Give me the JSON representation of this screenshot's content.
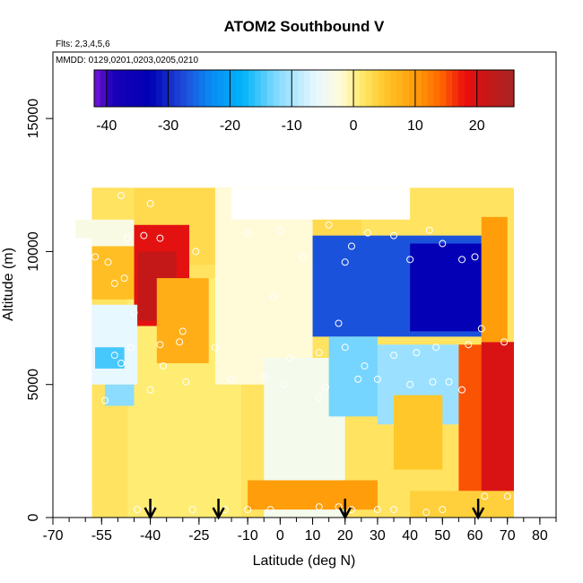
{
  "chart_data": {
    "type": "heatmap",
    "title": "ATOM2 Southbound V",
    "notes": [
      "Flts: 2,3,4,5,6",
      "MMDD: 0129,0201,0203,0205,0210"
    ],
    "xlabel": "Latitude (deg N)",
    "ylabel": "Altitude (m)",
    "xlim": [
      -70,
      85
    ],
    "ylim": [
      0,
      17500
    ],
    "x_ticks": [
      -70,
      -55,
      -40,
      -25,
      -10,
      0,
      10,
      20,
      30,
      40,
      50,
      60,
      70,
      80
    ],
    "x_tick_labels": [
      "-70",
      "-55",
      "-40",
      "-25",
      "-10",
      "0",
      "10",
      "20",
      "30",
      "40",
      "50",
      "60",
      "70",
      "80"
    ],
    "y_ticks": [
      0,
      5000,
      10000,
      15000
    ],
    "y_tick_labels": [
      "0",
      "5000",
      "10000",
      "15000"
    ],
    "colorbar": {
      "range": [
        -42,
        26
      ],
      "ticks": [
        -40,
        -30,
        -20,
        -10,
        0,
        10,
        20
      ],
      "tick_labels": [
        "-40",
        "-30",
        "-20",
        "-10",
        "0",
        "10",
        "20"
      ]
    },
    "colorscale": [
      [
        -42,
        "#7a16d6"
      ],
      [
        -39,
        "#1a00b8"
      ],
      [
        -33,
        "#0000b4"
      ],
      [
        -28,
        "#1f44d6"
      ],
      [
        -23,
        "#0a8cf5"
      ],
      [
        -18,
        "#00b4f8"
      ],
      [
        -12,
        "#8cdcff"
      ],
      [
        -6,
        "#e8f8ff"
      ],
      [
        -2,
        "#fffbd9"
      ],
      [
        1,
        "#ffec73"
      ],
      [
        5,
        "#ffc72a"
      ],
      [
        10,
        "#ff9d0a"
      ],
      [
        14,
        "#ff6a00"
      ],
      [
        18,
        "#ee0e0e"
      ],
      [
        22,
        "#c41818"
      ],
      [
        26,
        "#a82424"
      ]
    ],
    "regions": [
      {
        "lat": [
          -58,
          72
        ],
        "alt": [
          0,
          12400
        ],
        "v": 2
      },
      {
        "lat": [
          -47,
          -12
        ],
        "alt": [
          0,
          9000
        ],
        "v": 1
      },
      {
        "lat": [
          -63,
          -44
        ],
        "alt": [
          9000,
          11200
        ],
        "v": -3
      },
      {
        "lat": [
          -45,
          25
        ],
        "alt": [
          9500,
          12400
        ],
        "v": 3
      },
      {
        "lat": [
          -45,
          -28
        ],
        "alt": [
          7200,
          11000
        ],
        "v": 19
      },
      {
        "lat": [
          -44,
          -32
        ],
        "alt": [
          7400,
          10000
        ],
        "v": 22
      },
      {
        "lat": [
          -38,
          -22
        ],
        "alt": [
          5800,
          9000
        ],
        "v": 8
      },
      {
        "lat": [
          -58,
          -45
        ],
        "alt": [
          8200,
          10200
        ],
        "v": 6
      },
      {
        "lat": [
          -59,
          -44
        ],
        "alt": [
          5000,
          8000
        ],
        "v": -6
      },
      {
        "lat": [
          -57,
          -48
        ],
        "alt": [
          5600,
          6400
        ],
        "v": -15
      },
      {
        "lat": [
          -54,
          -45
        ],
        "alt": [
          4200,
          5000
        ],
        "v": -12
      },
      {
        "lat": [
          -20,
          10
        ],
        "alt": [
          5000,
          12400
        ],
        "v": -2
      },
      {
        "lat": [
          -5,
          20
        ],
        "alt": [
          0,
          6000
        ],
        "v": -4
      },
      {
        "lat": [
          10,
          62
        ],
        "alt": [
          6800,
          10600
        ],
        "v": -27
      },
      {
        "lat": [
          40,
          62
        ],
        "alt": [
          7000,
          10300
        ],
        "v": -34
      },
      {
        "lat": [
          15,
          30
        ],
        "alt": [
          3800,
          6800
        ],
        "v": -13
      },
      {
        "lat": [
          30,
          55
        ],
        "alt": [
          3500,
          6500
        ],
        "v": -11
      },
      {
        "lat": [
          35,
          50
        ],
        "alt": [
          1800,
          4600
        ],
        "v": 5
      },
      {
        "lat": [
          55,
          72
        ],
        "alt": [
          1000,
          6500
        ],
        "v": 15
      },
      {
        "lat": [
          62,
          72
        ],
        "alt": [
          1000,
          6600
        ],
        "v": 20
      },
      {
        "lat": [
          62,
          70
        ],
        "alt": [
          6600,
          11300
        ],
        "v": 10
      },
      {
        "lat": [
          40,
          72
        ],
        "alt": [
          0,
          1000
        ],
        "v": 4
      },
      {
        "lat": [
          -10,
          30
        ],
        "alt": [
          300,
          1400
        ],
        "v": 10
      }
    ],
    "coverage": [
      {
        "lat": [
          -70,
          -58
        ],
        "alt": [
          0,
          10500
        ],
        "v": null
      },
      {
        "lat": [
          -46,
          72
        ],
        "alt": [
          12400,
          13000
        ],
        "v": null
      },
      {
        "lat": [
          -15,
          40
        ],
        "alt": [
          11200,
          12400
        ],
        "v": null
      }
    ],
    "sample_points": [
      [
        -62,
        10200
      ],
      [
        -57,
        9800
      ],
      [
        -53,
        9600
      ],
      [
        -51,
        8800
      ],
      [
        -48,
        9000
      ],
      [
        -45,
        7700
      ],
      [
        -47,
        10500
      ],
      [
        -42,
        10600
      ],
      [
        -40,
        11800
      ],
      [
        -49,
        12100
      ],
      [
        -37,
        10500
      ],
      [
        -26,
        10000
      ],
      [
        -30,
        7000
      ],
      [
        -46,
        6400
      ],
      [
        -51,
        6100
      ],
      [
        -54,
        4400
      ],
      [
        -49,
        5800
      ],
      [
        -37,
        6500
      ],
      [
        -20,
        6400
      ],
      [
        -14,
        11900
      ],
      [
        -13,
        12000
      ],
      [
        -10,
        10700
      ],
      [
        0,
        10800
      ],
      [
        -2,
        8300
      ],
      [
        7,
        9800
      ],
      [
        15,
        11000
      ],
      [
        20,
        9600
      ],
      [
        22,
        10200
      ],
      [
        27,
        10700
      ],
      [
        35,
        10600
      ],
      [
        46,
        10800
      ],
      [
        50,
        10300
      ],
      [
        40,
        9700
      ],
      [
        56,
        9700
      ],
      [
        60,
        9800
      ],
      [
        62,
        7100
      ],
      [
        18,
        7300
      ],
      [
        3,
        6000
      ],
      [
        12,
        6200
      ],
      [
        20,
        6400
      ],
      [
        26,
        5700
      ],
      [
        35,
        6100
      ],
      [
        42,
        6200
      ],
      [
        48,
        6400
      ],
      [
        58,
        6500
      ],
      [
        69,
        6600
      ],
      [
        24,
        5200
      ],
      [
        14,
        4900
      ],
      [
        30,
        5200
      ],
      [
        40,
        5000
      ],
      [
        47,
        5100
      ],
      [
        52,
        5100
      ],
      [
        56,
        4800
      ],
      [
        12,
        4500
      ],
      [
        1,
        5000
      ],
      [
        -5,
        5300
      ],
      [
        -15,
        5200
      ],
      [
        -29,
        5100
      ],
      [
        -40,
        4800
      ],
      [
        -36,
        5700
      ],
      [
        -31,
        6600
      ],
      [
        22,
        300
      ],
      [
        30,
        300
      ],
      [
        35,
        300
      ],
      [
        45,
        200
      ],
      [
        50,
        300
      ],
      [
        63,
        800
      ],
      [
        70,
        800
      ],
      [
        -44,
        300
      ],
      [
        -27,
        300
      ],
      [
        -17,
        300
      ],
      [
        -10,
        300
      ],
      [
        -3,
        300
      ],
      [
        -40,
        300
      ],
      [
        -59,
        300
      ],
      [
        12,
        400
      ],
      [
        18,
        400
      ]
    ],
    "arrows": [
      -40,
      -19,
      20,
      61
    ],
    "grid": false
  }
}
